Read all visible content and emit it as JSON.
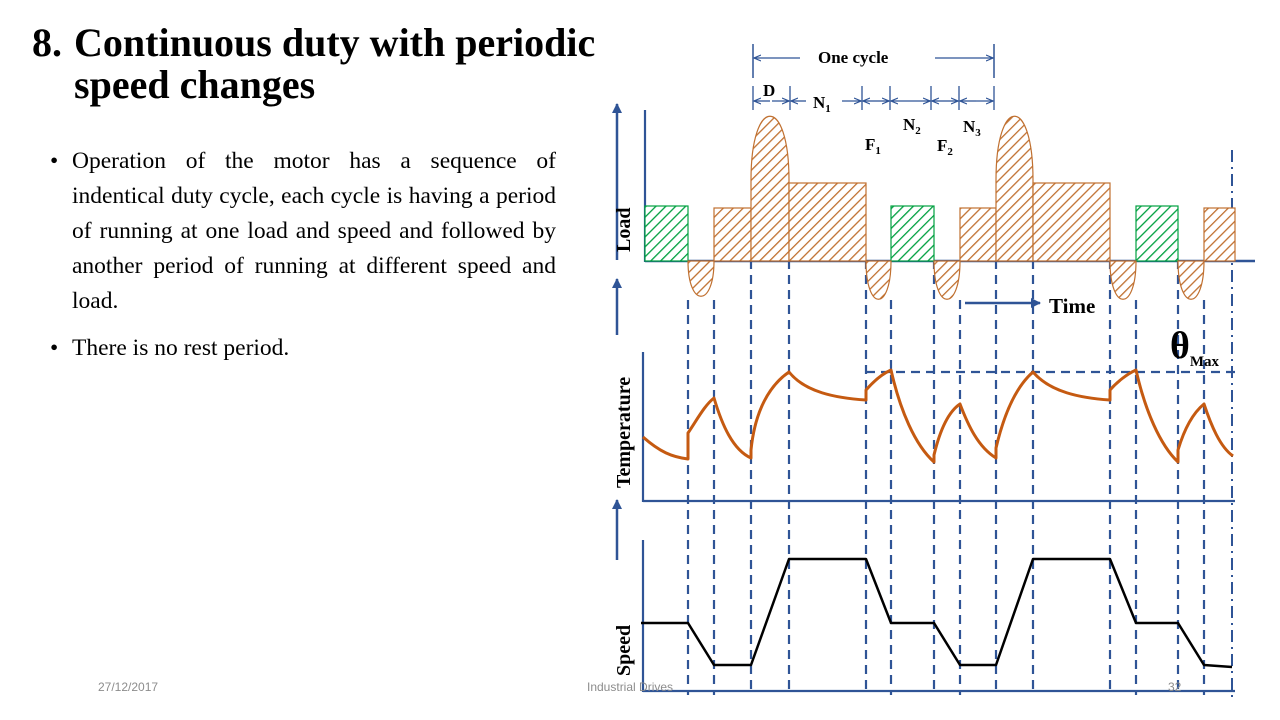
{
  "slide": {
    "title_number": "8.",
    "title_line1": "Continuous duty with periodic",
    "title_line2": "speed changes",
    "bullets": [
      "Operation of the motor has a sequence of indentical duty cycle, each cycle is having a period of running at one load and speed and followed by another period of running at different speed and load.",
      "There is no rest period."
    ],
    "footer_date": "27/12/2017",
    "footer_center": "Industrial Drives",
    "footer_page": "32"
  },
  "diagram": {
    "cycle_label": "One cycle",
    "interval_labels": {
      "D": "D",
      "N1": "N",
      "N1_sub": "1",
      "N2": "N",
      "N2_sub": "2",
      "N3": "N",
      "N3_sub": "3",
      "F1": "F",
      "F1_sub": "1",
      "F2": "F",
      "F2_sub": "2"
    },
    "axis_labels": {
      "load": "Load",
      "temperature": "Temperature",
      "speed": "Speed",
      "time": "Time"
    },
    "theta_label": "θ",
    "theta_sub": "Max",
    "colors": {
      "axis": "#2f5496",
      "load_fill": "#c07030",
      "load_green": "#00a040",
      "temperature": "#c55a11",
      "speed": "#000000"
    }
  }
}
